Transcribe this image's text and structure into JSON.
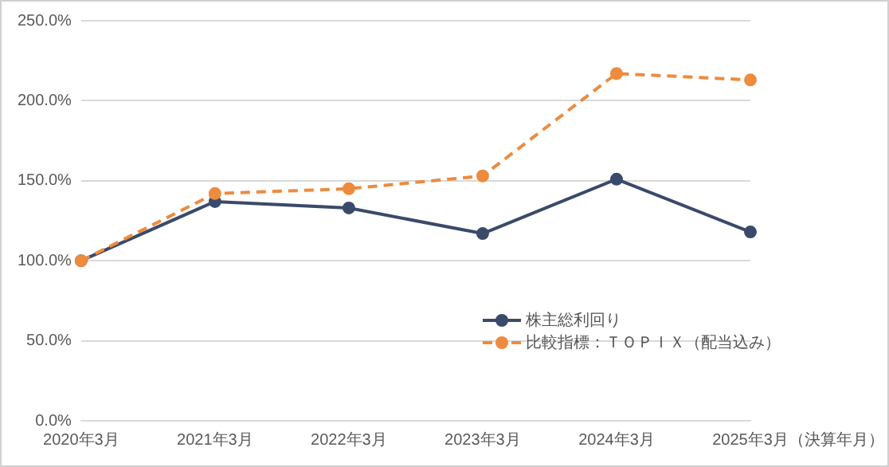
{
  "chart_data": {
    "type": "line",
    "xlabel": "（決算年月）",
    "categories": [
      "2020年3月",
      "2021年3月",
      "2022年3月",
      "2023年3月",
      "2024年3月",
      "2025年3月"
    ],
    "series": [
      {
        "name": "株主総利回り",
        "color": "#3a4a6b",
        "values": [
          100,
          137,
          133,
          117,
          151,
          118
        ],
        "line_style": "solid"
      },
      {
        "name": "比較指標：ＴＯＰＩＸ（配当込み）",
        "color": "#ed8b3e",
        "values": [
          100,
          142,
          145,
          153,
          217,
          213
        ],
        "line_style": "dashed"
      }
    ],
    "ylim": [
      0,
      250
    ],
    "yticks": [
      {
        "value": 0,
        "label": "0.0%"
      },
      {
        "value": 50,
        "label": "50.0%"
      },
      {
        "value": 100,
        "label": "100.0%"
      },
      {
        "value": 150,
        "label": "150.0%"
      },
      {
        "value": 200,
        "label": "200.0%"
      },
      {
        "value": 250,
        "label": "250.0%"
      }
    ],
    "grid": "y",
    "legend": "bottom",
    "marker": "circle"
  }
}
